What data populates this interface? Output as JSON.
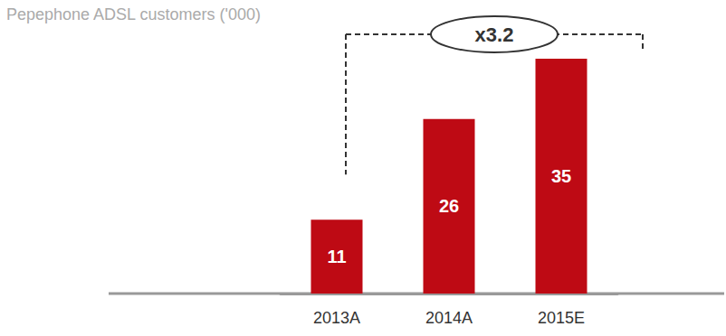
{
  "chart_data": {
    "type": "bar",
    "title": "Pepephone ADSL customers ('000)",
    "categories": [
      "2013A",
      "2014A",
      "2015E"
    ],
    "values": [
      11,
      26,
      35
    ],
    "color": "#be0a14",
    "ylim": [
      0,
      35
    ],
    "grid": false,
    "data_labels": true,
    "tick_labels": "x",
    "annotation": "x3.2"
  }
}
